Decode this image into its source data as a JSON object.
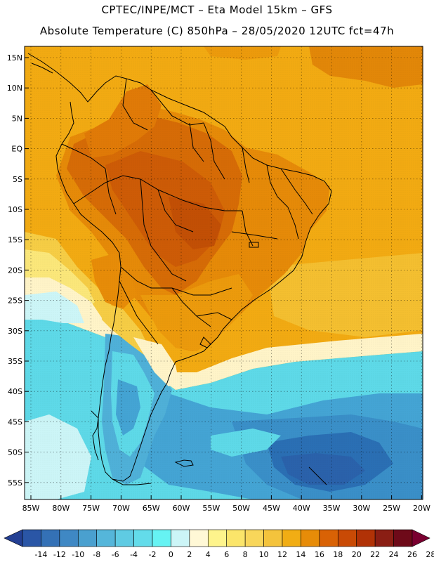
{
  "header": {
    "line1": "CPTEC/INPE/MCT –  Eta Model 15km – GFS",
    "line2": "Absolute Temperature (C) 850hPa – 28/05/2020 12UTC fct=47h"
  },
  "map": {
    "lat_labels": [
      "15N",
      "10N",
      "5N",
      "EQ",
      "5S",
      "10S",
      "15S",
      "20S",
      "25S",
      "30S",
      "35S",
      "40S",
      "45S",
      "50S",
      "55S"
    ],
    "lon_labels": [
      "85W",
      "80W",
      "75W",
      "70W",
      "65W",
      "60W",
      "55W",
      "50W",
      "45W",
      "40W",
      "35W",
      "30W",
      "25W",
      "20W"
    ]
  },
  "colorbar": {
    "ticks": [
      "-14",
      "-12",
      "-10",
      "-8",
      "-6",
      "-4",
      "-2",
      "0",
      "2",
      "4",
      "6",
      "8",
      "10",
      "12",
      "14",
      "16",
      "18",
      "20",
      "22",
      "24",
      "26",
      "28"
    ],
    "colors": [
      "#233f93",
      "#2a56a6",
      "#3471b6",
      "#3f88c4",
      "#4aa0cf",
      "#55b6da",
      "#5fcbe3",
      "#63dcea",
      "#66f3f3",
      "#ccf5f7",
      "#fff8d6",
      "#fef48c",
      "#fbe56a",
      "#f8d65a",
      "#f4c33c",
      "#f1ad14",
      "#e78c08",
      "#d96205",
      "#c94a05",
      "#b13206",
      "#8a1e14",
      "#6e0a19",
      "#7a0030"
    ]
  },
  "palette": {
    "ocean_warm": "#f2aa12",
    "land_hot": "#d66b06",
    "land_core": "#cd5b06",
    "yellow": "#f6cd45",
    "pale": "#fff4c8",
    "cyan": "#5ed9e8",
    "blue": "#3a8fc8",
    "deep_blue": "#2a62ab",
    "coast": "#000000"
  }
}
